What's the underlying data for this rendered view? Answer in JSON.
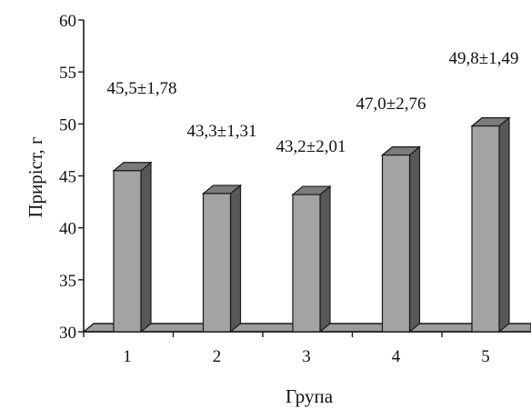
{
  "chart_data": {
    "type": "bar",
    "categories": [
      "1",
      "2",
      "3",
      "4",
      "5"
    ],
    "values": [
      45.5,
      43.3,
      43.2,
      47.0,
      49.8
    ],
    "data_labels": [
      "45,5±1,78",
      "43,3±1,31",
      "43,2±2,01",
      "47,0±2,76",
      "49,8±1,49"
    ],
    "xlabel": "Група",
    "ylabel": "Приріст, г",
    "ylim": [
      30,
      60
    ],
    "yticks": [
      30,
      35,
      40,
      45,
      50,
      55,
      60
    ],
    "grid": false,
    "style": "3d",
    "colors": {
      "bar_front": "#a3a3a3",
      "bar_top": "#7b7b7b",
      "bar_side": "#585858",
      "floor": "#9c9c9c",
      "stroke": "#1a1a1a"
    }
  }
}
